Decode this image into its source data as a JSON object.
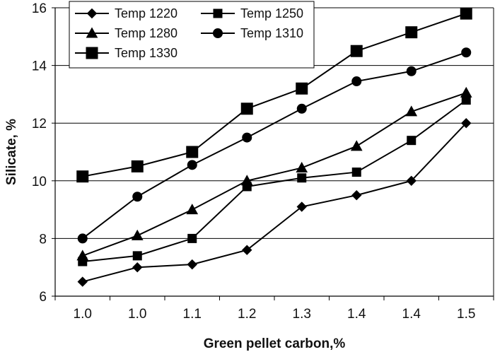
{
  "chart_data": {
    "type": "line",
    "title": "",
    "xlabel": "Green pellet carbon,%",
    "ylabel": "Silicate, %",
    "categories": [
      "1.0",
      "1.0",
      "1.1",
      "1.2",
      "1.3",
      "1.4",
      "1.4",
      "1.5"
    ],
    "ylim": [
      6,
      16
    ],
    "yticks": [
      "6",
      "8",
      "10",
      "12",
      "14",
      "16"
    ],
    "grid": "horizontal",
    "legend_position": "top-left",
    "series": [
      {
        "name": "Temp 1220",
        "marker": "diamond",
        "values": [
          6.5,
          7.0,
          7.1,
          7.6,
          9.1,
          9.5,
          10.0,
          12.0
        ]
      },
      {
        "name": "Temp 1250",
        "marker": "square-small",
        "values": [
          7.2,
          7.4,
          8.0,
          9.8,
          10.1,
          10.3,
          11.4,
          12.8
        ]
      },
      {
        "name": "Temp 1280",
        "marker": "triangle",
        "values": [
          7.4,
          8.1,
          9.0,
          10.0,
          10.45,
          11.2,
          12.4,
          13.05
        ]
      },
      {
        "name": "Temp 1310",
        "marker": "circle",
        "values": [
          8.0,
          9.45,
          10.55,
          11.5,
          12.5,
          13.45,
          13.8,
          14.45
        ]
      },
      {
        "name": "Temp 1330",
        "marker": "square-large",
        "values": [
          10.15,
          10.5,
          11.0,
          12.5,
          13.2,
          14.5,
          15.15,
          15.8
        ]
      }
    ]
  }
}
